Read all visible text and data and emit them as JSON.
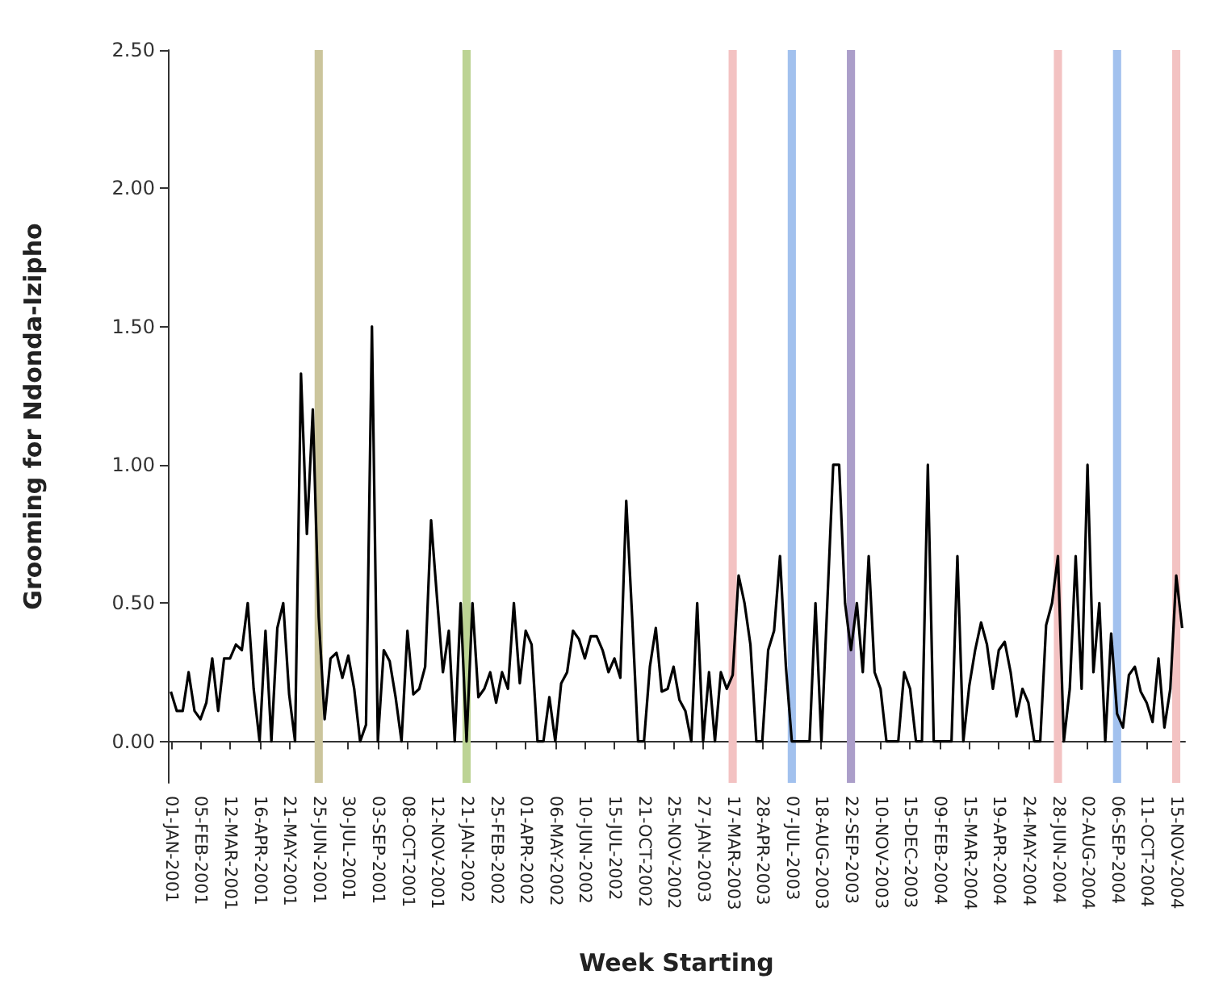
{
  "chart_data": {
    "type": "line",
    "xlabel": "Week Starting",
    "ylabel": "Grooming for Ndonda-Izipho",
    "categories": [
      "01-JAN-2001",
      null,
      null,
      null,
      null,
      "05-FEB-2001",
      null,
      null,
      null,
      null,
      "12-MAR-2001",
      null,
      null,
      null,
      null,
      "16-APR-2001",
      null,
      null,
      null,
      null,
      "21-MAY-2001",
      null,
      null,
      null,
      null,
      "25-JUN-2001",
      null,
      null,
      null,
      null,
      "30-JUL-2001",
      null,
      null,
      null,
      null,
      "03-SEP-2001",
      null,
      null,
      null,
      null,
      "08-OCT-2001",
      null,
      null,
      null,
      null,
      "12-NOV-2001",
      null,
      null,
      null,
      null,
      "21-JAN-2002",
      null,
      null,
      null,
      null,
      "25-FEB-2002",
      null,
      null,
      null,
      null,
      "01-APR-2002",
      null,
      null,
      null,
      null,
      "06-MAY-2002",
      null,
      null,
      null,
      null,
      "10-JUN-2002",
      null,
      null,
      null,
      null,
      "15-JUL-2002",
      null,
      null,
      null,
      null,
      "21-OCT-2002",
      null,
      null,
      null,
      null,
      "25-NOV-2002",
      null,
      null,
      null,
      null,
      "27-JAN-2003",
      null,
      null,
      null,
      null,
      "17-MAR-2003",
      null,
      null,
      null,
      null,
      "28-APR-2003",
      null,
      null,
      null,
      null,
      "07-JUL-2003",
      null,
      null,
      null,
      null,
      "18-AUG-2003",
      null,
      null,
      null,
      null,
      "22-SEP-2003",
      null,
      null,
      null,
      null,
      "10-NOV-2003",
      null,
      null,
      null,
      null,
      "15-DEC-2003",
      null,
      null,
      null,
      null,
      "09-FEB-2004",
      null,
      null,
      null,
      null,
      "15-MAR-2004",
      null,
      null,
      null,
      null,
      "19-APR-2004",
      null,
      null,
      null,
      null,
      "24-MAY-2004",
      null,
      null,
      null,
      null,
      "28-JUN-2004",
      null,
      null,
      null,
      null,
      "02-AUG-2004",
      null,
      null,
      null,
      null,
      "06-SEP-2004",
      null,
      null,
      null,
      null,
      "11-OCT-2004",
      null,
      null,
      null,
      null,
      "15-NOV-2004",
      null
    ],
    "values": [
      0.18,
      0.11,
      0.11,
      0.25,
      0.11,
      0.08,
      0.14,
      0.3,
      0.11,
      0.3,
      0.3,
      0.35,
      0.33,
      0.5,
      0.19,
      0,
      0.4,
      0,
      0.41,
      0.5,
      0.17,
      0,
      1.33,
      0.75,
      1.2,
      0.45,
      0.08,
      0.3,
      0.32,
      0.23,
      0.31,
      0.19,
      0,
      0.06,
      1.5,
      0,
      0.33,
      0.29,
      0.16,
      0,
      0.4,
      0.17,
      0.19,
      0.27,
      0.8,
      0.52,
      0.25,
      0.4,
      0,
      0.5,
      0,
      0.5,
      0.16,
      0.19,
      0.25,
      0.14,
      0.25,
      0.19,
      0.5,
      0.21,
      0.4,
      0.35,
      0,
      0,
      0.16,
      0,
      0.21,
      0.25,
      0.4,
      0.37,
      0.3,
      0.38,
      0.38,
      0.33,
      0.25,
      0.3,
      0.23,
      0.87,
      0.45,
      0,
      0,
      0.27,
      0.41,
      0.18,
      0.19,
      0.27,
      0.15,
      0.11,
      0,
      0.5,
      0,
      0.25,
      0,
      0.25,
      0.19,
      0.24,
      0.6,
      0.5,
      0.35,
      0,
      0,
      0.33,
      0.4,
      0.67,
      0.27,
      0,
      0,
      0,
      0,
      0.5,
      0,
      0.5,
      1,
      1,
      0.5,
      0.33,
      0.5,
      0.25,
      0.67,
      0.25,
      0.19,
      0,
      0,
      0,
      0.25,
      0.19,
      0,
      0,
      1,
      0,
      0,
      0,
      0,
      0.67,
      0,
      0.2,
      0.33,
      0.43,
      0.35,
      0.19,
      0.33,
      0.36,
      0.25,
      0.09,
      0.19,
      0.14,
      0,
      0,
      0.42,
      0.5,
      0.67,
      0,
      0.19,
      0.67,
      0.19,
      1,
      0.25,
      0.5,
      0,
      0.39,
      0.1,
      0.05,
      0.24,
      0.27,
      0.18,
      0.14,
      0.07,
      0.3,
      0.05,
      0.19,
      0.6,
      0.41
    ],
    "color": "#000000",
    "marker": "none",
    "ylim": [
      -0.15,
      2.5
    ],
    "yticks": [
      {
        "value": 0,
        "label": "0.00"
      },
      {
        "value": 0.5,
        "label": "0.50"
      },
      {
        "value": 1,
        "label": "1.00"
      },
      {
        "value": 1.5,
        "label": "1.50"
      },
      {
        "value": 2,
        "label": "2.00"
      },
      {
        "value": 2.5,
        "label": "2.50"
      }
    ],
    "bands": [
      {
        "axis": "x",
        "from": "25-JUN-2001",
        "to": "25-JUN-2001",
        "color": "#cbc59c"
      },
      {
        "axis": "x",
        "from": "21-JAN-2002",
        "to": "21-JAN-2002",
        "color": "#bcd394"
      },
      {
        "axis": "x",
        "from": "17-MAR-2003",
        "to": "17-MAR-2003",
        "color": "#f3c2c2"
      },
      {
        "axis": "x",
        "from": "07-JUL-2003",
        "to": "07-JUL-2003",
        "color": "#a2c1ee"
      },
      {
        "axis": "x",
        "from": "22-SEP-2003",
        "to": "22-SEP-2003",
        "color": "#ab9ec9"
      },
      {
        "axis": "x",
        "from": "28-JUN-2004",
        "to": "28-JUN-2004",
        "color": "#f3c2c2"
      },
      {
        "axis": "x",
        "from": "06-SEP-2004",
        "to": "06-SEP-2004",
        "color": "#a2c1ee"
      },
      {
        "axis": "x",
        "from": "15-NOV-2004",
        "to": "15-NOV-2004",
        "color": "#f3c2c2"
      }
    ]
  }
}
